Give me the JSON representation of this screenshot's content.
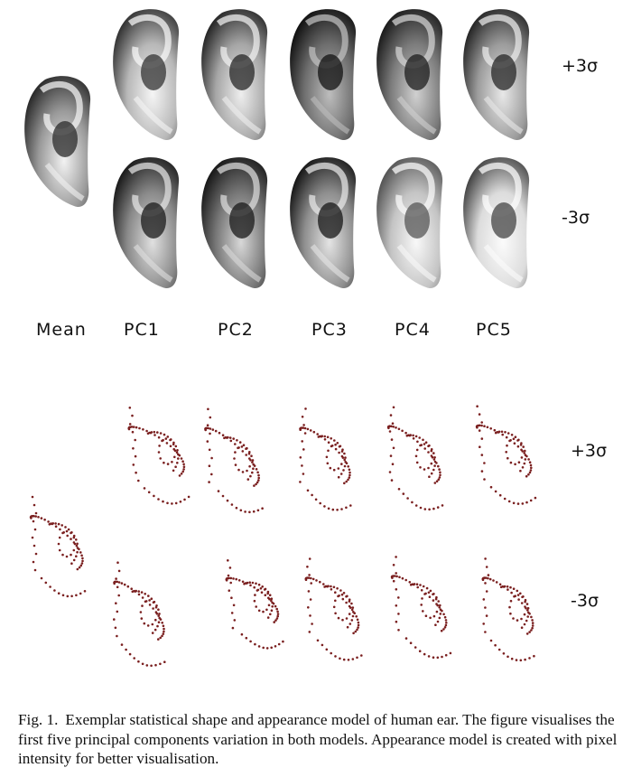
{
  "figure": {
    "label": "Fig. 1.",
    "caption": "Exemplar statistical shape and appearance model of human ear. The figure visualises the first five principal components variation in both models. Appearance model is created with pixel intensity for better visualisation."
  },
  "columns": [
    "Mean",
    "PC1",
    "PC2",
    "PC3",
    "PC4",
    "PC5"
  ],
  "appearance_model": {
    "row_labels": [
      "+3σ",
      "-3σ"
    ],
    "ears": [
      {
        "id": "mean",
        "shade": "#9a9a9a",
        "dark": "#2a2a2a",
        "light": "#f2f2f2"
      },
      {
        "id": "pc1-plus",
        "shade": "#b8b8b8",
        "dark": "#333333",
        "light": "#f5f5f5"
      },
      {
        "id": "pc2-plus",
        "shade": "#a6a6a6",
        "dark": "#262626",
        "light": "#eeeeee"
      },
      {
        "id": "pc3-plus",
        "shade": "#6e6e6e",
        "dark": "#111111",
        "light": "#bdbdbd"
      },
      {
        "id": "pc4-plus",
        "shade": "#7c7c7c",
        "dark": "#1c1c1c",
        "light": "#d0d0d0"
      },
      {
        "id": "pc5-plus",
        "shade": "#9c9c9c",
        "dark": "#262626",
        "light": "#e8e8e8"
      },
      {
        "id": "pc1-minus",
        "shade": "#8a8a8a",
        "dark": "#1a1a1a",
        "light": "#e0e0e0"
      },
      {
        "id": "pc2-minus",
        "shade": "#777777",
        "dark": "#181818",
        "light": "#d8d8d8"
      },
      {
        "id": "pc3-minus",
        "shade": "#8e8e8e",
        "dark": "#161616",
        "light": "#e4e4e4"
      },
      {
        "id": "pc4-minus",
        "shade": "#c4c4c4",
        "dark": "#555555",
        "light": "#f8f8f8"
      },
      {
        "id": "pc5-minus",
        "shade": "#dcdcdc",
        "dark": "#444444",
        "light": "#fbfbfb"
      }
    ]
  },
  "shape_model": {
    "row_labels": [
      "+3σ",
      "-3σ"
    ],
    "point_color": "#7a1f1f"
  }
}
